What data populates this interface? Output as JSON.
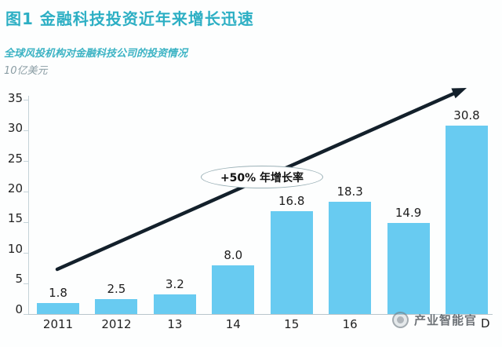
{
  "header": {
    "title": "图1  金融科技投资近年来增长迅速"
  },
  "subtitle": "全球风投机构对金融科技公司的投资情况",
  "unit_label": "10亿美元",
  "annotation": {
    "label": "+50% 年增长率"
  },
  "watermark": {
    "text": "产业智能官",
    "logo": "circle-badge-icon"
  },
  "x_axis": {
    "partial_last_label": "D"
  },
  "colors": {
    "title_teal": "#2dafc4",
    "subtitle_teal": "#3cb3c4",
    "bar_blue": "#68cbf1",
    "arrow_dark": "#13202b",
    "axis_gray": "#c4d2d8",
    "label_dark": "#222222"
  },
  "chart_data": {
    "type": "bar",
    "title": "图1 金融科技投资近年来增长迅速",
    "subtitle": "全球风投机构对金融科技公司的投资情况",
    "ylabel": "10亿美元",
    "categories": [
      "2011",
      "2012",
      "13",
      "14",
      "15",
      "16",
      "",
      ""
    ],
    "values": [
      1.8,
      2.5,
      3.2,
      8.0,
      16.8,
      18.3,
      14.9,
      30.8
    ],
    "data_labels": [
      "1.8",
      "2.5",
      "3.2",
      "8.0",
      "16.8",
      "18.3",
      "14.9",
      "30.8"
    ],
    "ylim": [
      0,
      35
    ],
    "yticks": [
      0,
      5,
      10,
      15,
      20,
      25,
      30,
      35
    ],
    "grid": false,
    "legend": "none",
    "annotations": [
      {
        "text": "+50% 年增长率",
        "shape": "ellipse-over-arrow"
      },
      {
        "text": "D",
        "note": "remnant of last x label partly hidden by watermark"
      }
    ]
  }
}
